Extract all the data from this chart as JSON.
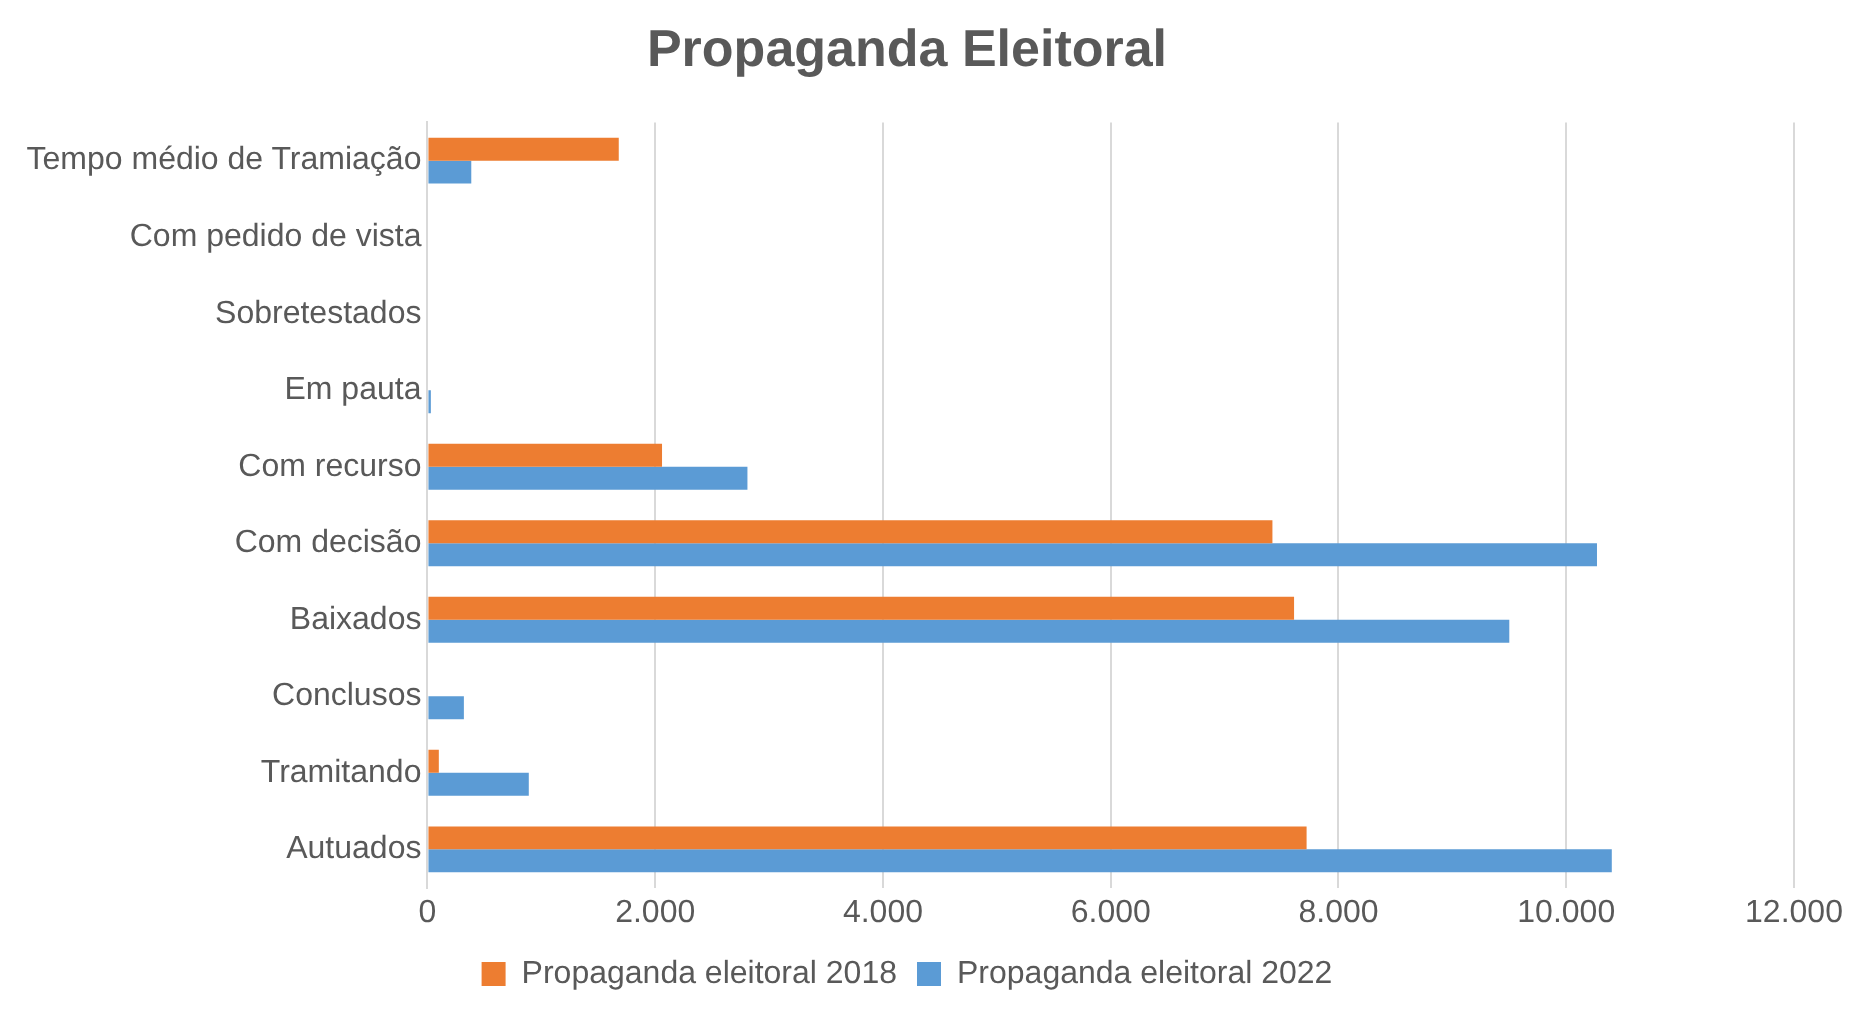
{
  "chart_data": {
    "type": "bar",
    "orientation": "horizontal",
    "title": "Propaganda Eleitoral",
    "categories": [
      "Tempo médio de Tramiação",
      "Com pedido de vista",
      "Sobretestados",
      "Em pauta",
      "Com recurso",
      "Com decisão",
      "Baixados",
      "Conclusos",
      "Tramitando",
      "Autuados"
    ],
    "series": [
      {
        "name": "Propaganda eleitoral 2018",
        "color": "#ed7d31",
        "values": [
          1680,
          0,
          0,
          0,
          2060,
          7420,
          7610,
          0,
          100,
          7720
        ]
      },
      {
        "name": "Propaganda eleitoral 2022",
        "color": "#5b9bd5",
        "values": [
          385,
          0,
          0,
          30,
          2810,
          10270,
          9500,
          320,
          890,
          10400
        ]
      }
    ],
    "xlim": [
      0,
      12000
    ],
    "xticks": [
      {
        "value": 0,
        "label": "0"
      },
      {
        "value": 2000,
        "label": "2.000"
      },
      {
        "value": 4000,
        "label": "4.000"
      },
      {
        "value": 6000,
        "label": "6.000"
      },
      {
        "value": 8000,
        "label": "8.000"
      },
      {
        "value": 10000,
        "label": "10.000"
      },
      {
        "value": 12000,
        "label": "12.000"
      }
    ],
    "grid": "x",
    "legend": "bottom"
  }
}
